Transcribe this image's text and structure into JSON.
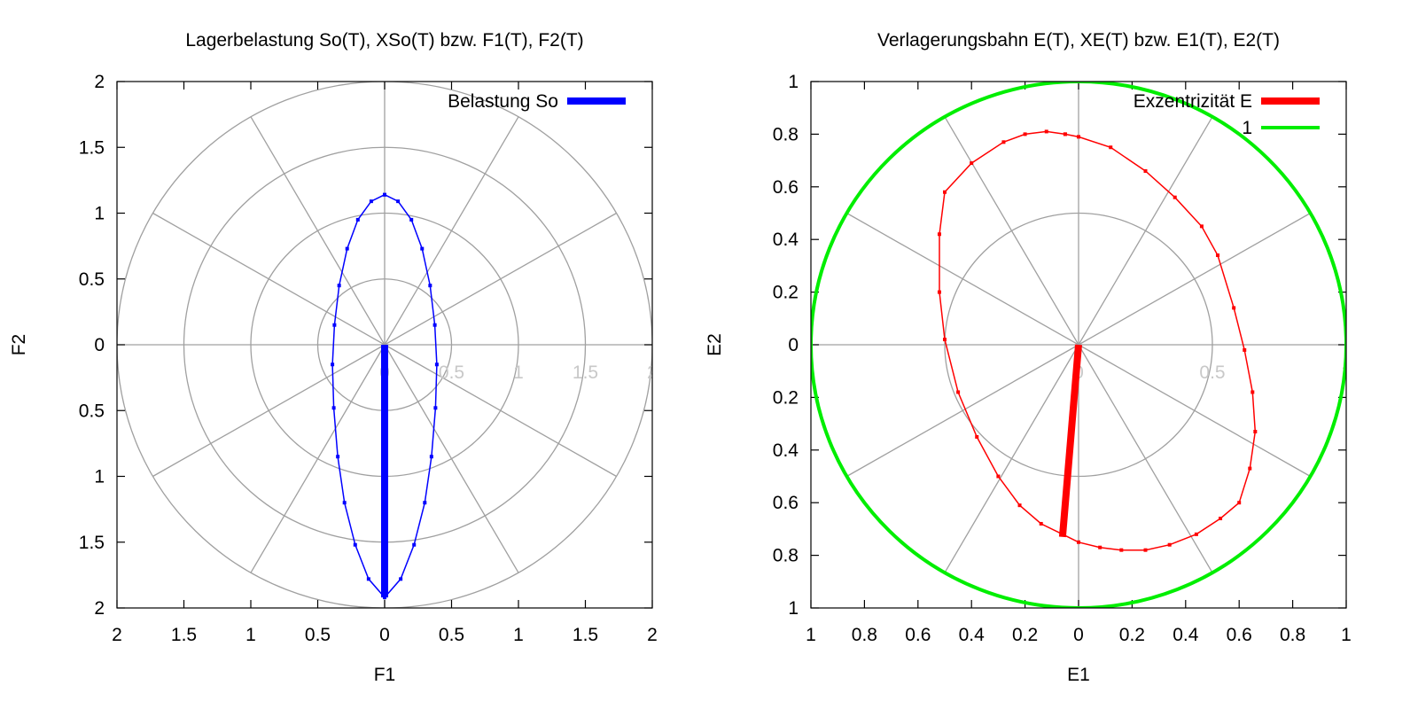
{
  "chart_data": [
    {
      "type": "scatter",
      "title": "Lagerbelastung So(T), XSo(T) bzw. F1(T), F2(T)",
      "xlabel": "F1",
      "ylabel": "F2",
      "xlim": [
        -2,
        2
      ],
      "ylim": [
        -2,
        2
      ],
      "xticks": [
        -2,
        -1.5,
        -1,
        -0.5,
        0,
        0.5,
        1,
        1.5,
        2
      ],
      "xtick_labels": [
        "2",
        "1.5",
        "1",
        "0.5",
        "0",
        "0.5",
        "1",
        "1.5",
        "2"
      ],
      "yticks": [
        2,
        1.5,
        1,
        0.5,
        0,
        -0.5,
        -1,
        -1.5,
        -2
      ],
      "ytick_labels": [
        "2",
        "1.5",
        "1",
        "0.5",
        "0",
        "0.5",
        "1",
        "1.5",
        "2"
      ],
      "polar_grid": {
        "radii": [
          0.5,
          1,
          1.5,
          2
        ],
        "radius_labels": [
          "0",
          "0.5",
          "1",
          "1.5",
          "2"
        ],
        "spoke_step_deg": 30
      },
      "grid": true,
      "legend_position": "top-right",
      "legend": [
        {
          "name": "Belastung So",
          "color": "#0000ff"
        }
      ],
      "series": [
        {
          "name": "Belastung So",
          "color": "#0000ff",
          "kind": "closed-curve",
          "x": [
            0,
            0.1,
            0.2,
            0.28,
            0.34,
            0.375,
            0.39,
            0.38,
            0.35,
            0.3,
            0.22,
            0.12,
            0,
            -0.12,
            -0.22,
            -0.3,
            -0.35,
            -0.38,
            -0.39,
            -0.375,
            -0.34,
            -0.28,
            -0.2,
            -0.1,
            0
          ],
          "y": [
            1.14,
            1.09,
            0.95,
            0.73,
            0.45,
            0.15,
            -0.15,
            -0.48,
            -0.85,
            -1.2,
            -1.52,
            -1.78,
            -1.92,
            -1.78,
            -1.52,
            -1.2,
            -0.85,
            -0.48,
            -0.15,
            0.15,
            0.45,
            0.73,
            0.95,
            1.09,
            1.14
          ]
        },
        {
          "name": "Belastung So vector",
          "color": "#0000ff",
          "kind": "vector",
          "x": [
            0,
            0
          ],
          "y": [
            0,
            -1.92
          ]
        }
      ]
    },
    {
      "type": "scatter",
      "title": "Verlagerungsbahn E(T), XE(T) bzw. E1(T), E2(T)",
      "xlabel": "E1",
      "ylabel": "E2",
      "xlim": [
        -1,
        1
      ],
      "ylim": [
        -1,
        1
      ],
      "xticks": [
        -1,
        -0.8,
        -0.6,
        -0.4,
        -0.2,
        0,
        0.2,
        0.4,
        0.6,
        0.8,
        1
      ],
      "xtick_labels": [
        "1",
        "0.8",
        "0.6",
        "0.4",
        "0.2",
        "0",
        "0.2",
        "0.4",
        "0.6",
        "0.8",
        "1"
      ],
      "yticks": [
        1,
        0.8,
        0.6,
        0.4,
        0.2,
        0,
        -0.2,
        -0.4,
        -0.6,
        -0.8,
        -1
      ],
      "ytick_labels": [
        "1",
        "0.8",
        "0.6",
        "0.4",
        "0.2",
        "0",
        "0.2",
        "0.4",
        "0.6",
        "0.8",
        "1"
      ],
      "polar_grid": {
        "radii": [
          0.5,
          1
        ],
        "radius_labels": [
          "0",
          "0.5",
          "1"
        ],
        "spoke_step_deg": 30
      },
      "grid": true,
      "legend_position": "top-right",
      "legend": [
        {
          "name": "Exzentrizität E",
          "color": "#ff0000"
        },
        {
          "name": "1",
          "color": "#00ee00"
        }
      ],
      "series": [
        {
          "name": "Exzentrizität E",
          "color": "#ff0000",
          "kind": "closed-curve",
          "x": [
            -0.05,
            -0.12,
            -0.2,
            -0.28,
            -0.4,
            -0.5,
            -0.52,
            -0.52,
            -0.5,
            -0.45,
            -0.38,
            -0.3,
            -0.22,
            -0.14,
            -0.06,
            0,
            0.08,
            0.16,
            0.25,
            0.34,
            0.44,
            0.53,
            0.6,
            0.64,
            0.66,
            0.65,
            0.62,
            0.58,
            0.52,
            0.46,
            0.36,
            0.25,
            0.12,
            0,
            -0.05
          ],
          "y": [
            0.8,
            0.81,
            0.8,
            0.77,
            0.69,
            0.58,
            0.42,
            0.2,
            0.02,
            -0.18,
            -0.35,
            -0.5,
            -0.61,
            -0.68,
            -0.72,
            -0.75,
            -0.77,
            -0.78,
            -0.78,
            -0.76,
            -0.72,
            -0.66,
            -0.6,
            -0.47,
            -0.33,
            -0.18,
            -0.02,
            0.14,
            0.34,
            0.45,
            0.56,
            0.66,
            0.75,
            0.79,
            0.8
          ]
        },
        {
          "name": "Exzentrizität E vector",
          "color": "#ff0000",
          "kind": "vector",
          "x": [
            0,
            -0.06
          ],
          "y": [
            0,
            -0.73
          ]
        },
        {
          "name": "1",
          "color": "#00ee00",
          "kind": "unit-circle",
          "radius": 1
        }
      ]
    }
  ]
}
